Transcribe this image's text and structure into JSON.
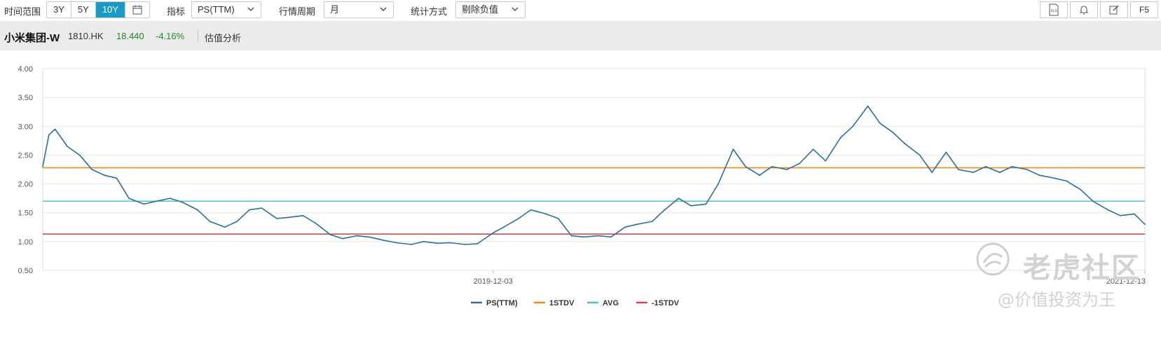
{
  "toolbar": {
    "time_range_label": "时间范围",
    "time_ranges": [
      "3Y",
      "5Y",
      "10Y"
    ],
    "active_range": "10Y",
    "indicator_label": "指标",
    "indicator_value": "PS(TTM)",
    "period_label": "行情周期",
    "period_value": "月",
    "stat_label": "统计方式",
    "stat_value": "剔除负值",
    "right_tools": [
      "xls-icon",
      "bell-icon",
      "edit-icon",
      "F5"
    ],
    "f5_label": "F5",
    "xls_label": "XLS"
  },
  "stock": {
    "name": "小米集团-W",
    "code": "1810.HK",
    "price": "18.440",
    "change": "-4.16%",
    "view_title": "估值分析"
  },
  "watermark": {
    "brand": "老虎社区",
    "handle": "@价值投资为王"
  },
  "chart_data": {
    "type": "line",
    "title": "",
    "xlabel": "",
    "ylabel": "",
    "ylim": [
      0.5,
      4.0
    ],
    "yticks": [
      "0.50",
      "1.00",
      "1.50",
      "2.00",
      "2.50",
      "3.00",
      "3.50",
      "4.00"
    ],
    "x_tick_labels": [
      "2019-12-03",
      "2021-12-13"
    ],
    "x_start": "2018-07-09",
    "x_end": "2021-12-13",
    "grid": true,
    "legend_position": "bottom",
    "series": [
      {
        "name": "PS(TTM)",
        "color": "#2d6f95",
        "type": "line",
        "x": [
          "2018-07-09",
          "2018-07-16",
          "2018-07-23",
          "2018-08-06",
          "2018-08-20",
          "2018-09-03",
          "2018-09-17",
          "2018-10-01",
          "2018-10-15",
          "2018-11-01",
          "2018-11-15",
          "2018-12-01",
          "2018-12-15",
          "2019-01-01",
          "2019-01-15",
          "2019-02-01",
          "2019-02-15",
          "2019-03-01",
          "2019-03-15",
          "2019-04-01",
          "2019-04-15",
          "2019-05-01",
          "2019-05-15",
          "2019-06-01",
          "2019-06-15",
          "2019-07-01",
          "2019-07-15",
          "2019-08-01",
          "2019-08-15",
          "2019-09-01",
          "2019-09-15",
          "2019-10-01",
          "2019-10-15",
          "2019-11-01",
          "2019-11-15",
          "2019-12-03",
          "2019-12-15",
          "2020-01-01",
          "2020-01-15",
          "2020-02-01",
          "2020-02-15",
          "2020-03-01",
          "2020-03-15",
          "2020-04-01",
          "2020-04-15",
          "2020-05-01",
          "2020-05-15",
          "2020-06-01",
          "2020-06-15",
          "2020-07-01",
          "2020-07-15",
          "2020-08-01",
          "2020-08-15",
          "2020-09-01",
          "2020-09-15",
          "2020-10-01",
          "2020-10-15",
          "2020-11-01",
          "2020-11-15",
          "2020-12-01",
          "2020-12-15",
          "2021-01-01",
          "2021-01-15",
          "2021-02-01",
          "2021-02-15",
          "2021-03-01",
          "2021-03-15",
          "2021-04-01",
          "2021-04-15",
          "2021-05-01",
          "2021-05-15",
          "2021-06-01",
          "2021-06-15",
          "2021-07-01",
          "2021-07-15",
          "2021-08-01",
          "2021-08-15",
          "2021-09-01",
          "2021-09-15",
          "2021-10-01",
          "2021-10-15",
          "2021-11-01",
          "2021-11-15",
          "2021-12-01",
          "2021-12-13"
        ],
        "values": [
          2.3,
          2.85,
          2.95,
          2.65,
          2.5,
          2.25,
          2.15,
          2.1,
          1.75,
          1.65,
          1.7,
          1.75,
          1.68,
          1.55,
          1.35,
          1.25,
          1.35,
          1.55,
          1.58,
          1.4,
          1.42,
          1.45,
          1.32,
          1.12,
          1.05,
          1.1,
          1.08,
          1.02,
          0.98,
          0.95,
          1.0,
          0.97,
          0.98,
          0.95,
          0.96,
          1.15,
          1.25,
          1.4,
          1.55,
          1.48,
          1.4,
          1.1,
          1.08,
          1.1,
          1.08,
          1.25,
          1.3,
          1.35,
          1.55,
          1.75,
          1.62,
          1.65,
          2.0,
          2.6,
          2.3,
          2.15,
          2.3,
          2.25,
          2.35,
          2.6,
          2.4,
          2.8,
          3.0,
          3.35,
          3.05,
          2.9,
          2.7,
          2.5,
          2.2,
          2.55,
          2.25,
          2.2,
          2.3,
          2.2,
          2.3,
          2.25,
          2.15,
          2.1,
          2.05,
          1.9,
          1.7,
          1.55,
          1.45,
          1.48,
          1.3
        ]
      },
      {
        "name": "1STDV",
        "color": "#e8891c",
        "type": "hline",
        "value": 2.28
      },
      {
        "name": "AVG",
        "color": "#57bccf",
        "type": "hline",
        "value": 1.7
      },
      {
        "name": "-1STDV",
        "color": "#d24a4e",
        "type": "hline",
        "value": 1.13
      }
    ]
  }
}
